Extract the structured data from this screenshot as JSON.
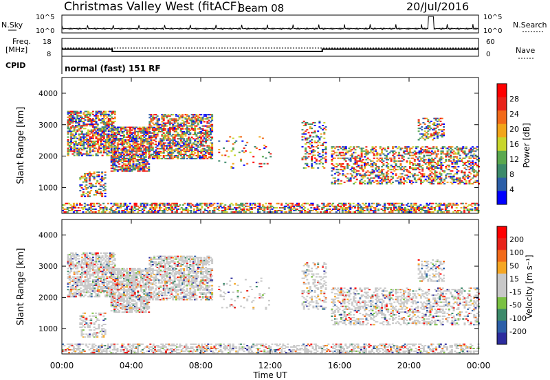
{
  "header": {
    "title": "Christmas Valley West (fitACF)",
    "beam": "Beam 08",
    "date": "20/Jul/2016"
  },
  "left_labels": {
    "nsky": "N.Sky",
    "freq_line1": "Freq.",
    "freq_line2": "[MHz]",
    "cpid": "CPID"
  },
  "right_labels": {
    "nsearch": "N.Search",
    "nave": "Nave"
  },
  "cpid_text": "normal (fast) 151 RF",
  "colors": {
    "power_scale": [
      "#0000ff",
      "#2c5fa8",
      "#3c8a6a",
      "#5aa84e",
      "#c8d62c",
      "#f2a51a",
      "#f26a1a",
      "#e8231a",
      "#ff0000"
    ],
    "velocity_scale": [
      "#2c2c9e",
      "#2c5fa8",
      "#3c8a6a",
      "#7ac142",
      "#c8c8c8",
      "#c8c8c8",
      "#f5a623",
      "#f26a1a",
      "#e8231a",
      "#ff0000"
    ],
    "ground_scatter": "#c8c8c8"
  },
  "chart_data": [
    {
      "type": "line",
      "panel": "N.Sky / N.Search",
      "yticks_left": [
        "10^5",
        "10^0"
      ],
      "yticks_right": [
        "10^5",
        "10^0"
      ]
    },
    {
      "type": "line",
      "panel": "Freq / Nave",
      "yticks_left": [
        "18",
        "8"
      ],
      "yticks_right": [
        "60",
        "0"
      ],
      "freq_series": [
        {
          "t0": 0.0,
          "t1": 2.9,
          "value": 12.0
        },
        {
          "t0": 2.9,
          "t1": 15.0,
          "value": 10.7
        },
        {
          "t0": 15.0,
          "t1": 24.0,
          "value": 12.0
        }
      ]
    },
    {
      "type": "heatmap",
      "panel": "Power",
      "ylabel": "Slant Range [km]",
      "yticks": [
        "1000",
        "2000",
        "3000",
        "4000"
      ],
      "ylim": [
        180,
        4500
      ],
      "colorbar_label": "Power [dB]",
      "colorbar_ticks": [
        "4",
        "8",
        "12",
        "16",
        "20",
        "24",
        "28"
      ],
      "colorbar_range": [
        0,
        32
      ]
    },
    {
      "type": "heatmap",
      "panel": "Velocity",
      "ylabel": "Slant Range [km]",
      "yticks": [
        "1000",
        "2000",
        "3000",
        "4000"
      ],
      "ylim": [
        180,
        4500
      ],
      "colorbar_label": "Velocity [m s⁻¹]",
      "colorbar_ticks": [
        "200",
        "100",
        "50",
        "15",
        "-15",
        "-50",
        "-100",
        "-200"
      ],
      "xlabel": "Time UT",
      "xticks": [
        "00:00",
        "04:00",
        "08:00",
        "12:00",
        "16:00",
        "20:00",
        "00:00"
      ],
      "xlim": [
        0,
        24
      ]
    }
  ]
}
